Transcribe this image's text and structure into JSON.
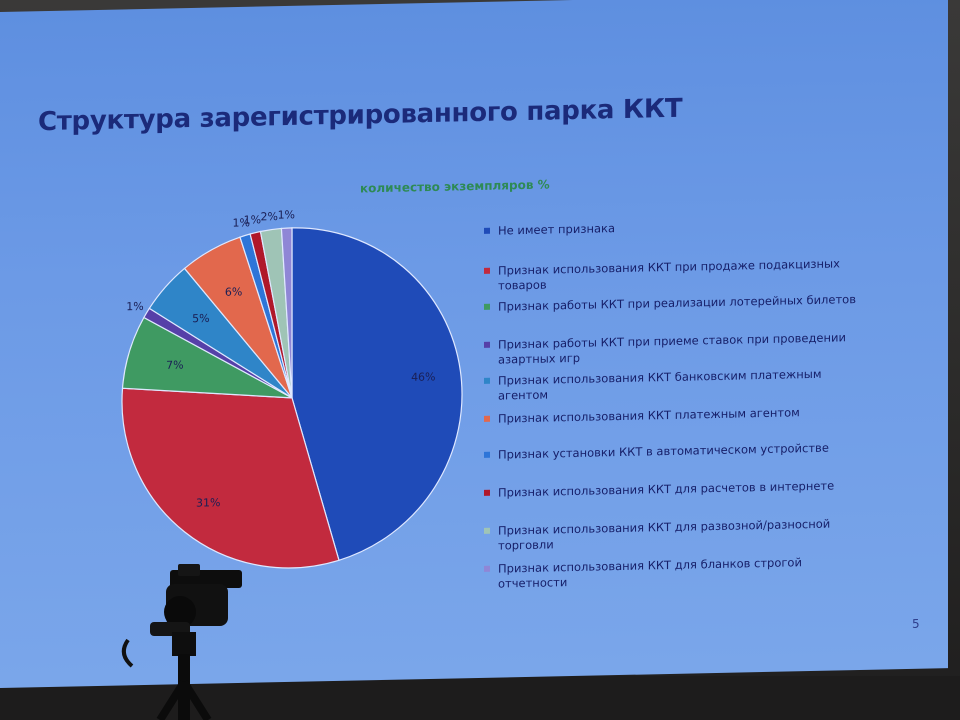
{
  "slide": {
    "title": "Структура зарегистрированного парка ККТ",
    "page_number": "5"
  },
  "chart_data": {
    "type": "pie",
    "title": "количество экземпляров %",
    "slices": [
      {
        "label": "Не имеет признака",
        "value": 46,
        "value_label": "46%",
        "color": "#1f4bb8"
      },
      {
        "label": "Признак использования ККТ при продаже подакцизных товаров",
        "value": 31,
        "value_label": "31%",
        "color": "#c22a3e"
      },
      {
        "label": "Признак работы ККТ при реализации лотерейных билетов",
        "value": 7,
        "value_label": "7%",
        "color": "#3f9a62"
      },
      {
        "label": "Признак работы ККТ при приеме ставок при проведении азартных игр",
        "value": 1,
        "value_label": "1%",
        "color": "#5640a8"
      },
      {
        "label": "Признак использования ККТ банковским платежным агентом",
        "value": 5,
        "value_label": "5%",
        "color": "#2f85c8"
      },
      {
        "label": "Признак использования ККТ платежным агентом",
        "value": 6,
        "value_label": "6%",
        "color": "#e2684d"
      },
      {
        "label": "Признак установки ККТ в автоматическом устройстве",
        "value": 1,
        "value_label": "1%",
        "color": "#2e75d8"
      },
      {
        "label": "Признак использования ККТ для расчетов в интернете",
        "value": 1,
        "value_label": "1%",
        "color": "#b0182a"
      },
      {
        "label": "Признак использования ККТ для развозной/разносной торговли",
        "value": 2,
        "value_label": "2%",
        "color": "#9fc4b6"
      },
      {
        "label": "Признак использования ККТ для бланков строгой отчетности",
        "value": 1,
        "value_label": "1%",
        "color": "#8f86d6"
      }
    ],
    "legend_position": "right"
  }
}
